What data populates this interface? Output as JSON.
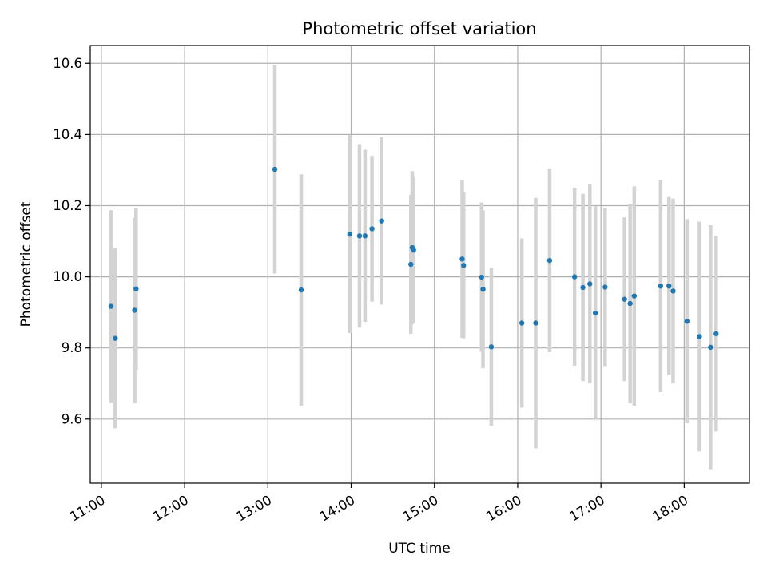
{
  "chart_data": {
    "type": "scatter",
    "title": "Photometric offset variation",
    "xlabel": "UTC time",
    "ylabel": "Photometric offset",
    "grid": true,
    "xlim": [
      "10:52",
      "18:47"
    ],
    "ylim": [
      9.42,
      10.65
    ],
    "x_ticks": [
      "11:00",
      "12:00",
      "13:00",
      "14:00",
      "15:00",
      "16:00",
      "17:00",
      "18:00"
    ],
    "y_ticks": [
      "9.6",
      "9.8",
      "10.0",
      "10.2",
      "10.4",
      "10.6"
    ],
    "colors": {
      "point": "#1f77b4",
      "errorbar": "#d3d3d3",
      "grid": "#b0b0b0"
    },
    "points": [
      {
        "x": "11:07",
        "y": 9.917,
        "yerr": 0.27
      },
      {
        "x": "11:10",
        "y": 9.827,
        "yerr": 0.253
      },
      {
        "x": "11:24",
        "y": 9.906,
        "yerr": 0.26
      },
      {
        "x": "11:25",
        "y": 9.966,
        "yerr": 0.228
      },
      {
        "x": "13:05",
        "y": 10.302,
        "yerr": 0.293
      },
      {
        "x": "13:24",
        "y": 9.963,
        "yerr": 0.325
      },
      {
        "x": "13:59",
        "y": 10.12,
        "yerr": 0.278
      },
      {
        "x": "14:06",
        "y": 10.115,
        "yerr": 0.258
      },
      {
        "x": "14:10",
        "y": 10.115,
        "yerr": 0.242
      },
      {
        "x": "14:15",
        "y": 10.135,
        "yerr": 0.205
      },
      {
        "x": "14:22",
        "y": 10.157,
        "yerr": 0.235
      },
      {
        "x": "14:43",
        "y": 10.035,
        "yerr": 0.195
      },
      {
        "x": "14:44",
        "y": 10.082,
        "yerr": 0.215
      },
      {
        "x": "14:45",
        "y": 10.075,
        "yerr": 0.205
      },
      {
        "x": "15:20",
        "y": 10.05,
        "yerr": 0.222
      },
      {
        "x": "15:21",
        "y": 10.032,
        "yerr": 0.205
      },
      {
        "x": "15:34",
        "y": 9.999,
        "yerr": 0.21
      },
      {
        "x": "15:35",
        "y": 9.965,
        "yerr": 0.222
      },
      {
        "x": "15:41",
        "y": 9.803,
        "yerr": 0.222
      },
      {
        "x": "16:03",
        "y": 9.87,
        "yerr": 0.238
      },
      {
        "x": "16:13",
        "y": 9.87,
        "yerr": 0.352
      },
      {
        "x": "16:23",
        "y": 10.046,
        "yerr": 0.258
      },
      {
        "x": "16:41",
        "y": 10.0,
        "yerr": 0.25
      },
      {
        "x": "16:47",
        "y": 9.97,
        "yerr": 0.263
      },
      {
        "x": "16:52",
        "y": 9.98,
        "yerr": 0.28
      },
      {
        "x": "16:56",
        "y": 9.898,
        "yerr": 0.3
      },
      {
        "x": "17:03",
        "y": 9.971,
        "yerr": 0.222
      },
      {
        "x": "17:17",
        "y": 9.937,
        "yerr": 0.23
      },
      {
        "x": "17:21",
        "y": 9.925,
        "yerr": 0.28
      },
      {
        "x": "17:24",
        "y": 9.946,
        "yerr": 0.308
      },
      {
        "x": "17:43",
        "y": 9.974,
        "yerr": 0.298
      },
      {
        "x": "17:49",
        "y": 9.974,
        "yerr": 0.25
      },
      {
        "x": "17:52",
        "y": 9.96,
        "yerr": 0.26
      },
      {
        "x": "18:02",
        "y": 9.875,
        "yerr": 0.287
      },
      {
        "x": "18:11",
        "y": 9.832,
        "yerr": 0.323
      },
      {
        "x": "18:19",
        "y": 9.802,
        "yerr": 0.343
      },
      {
        "x": "18:23",
        "y": 9.84,
        "yerr": 0.275
      }
    ]
  }
}
